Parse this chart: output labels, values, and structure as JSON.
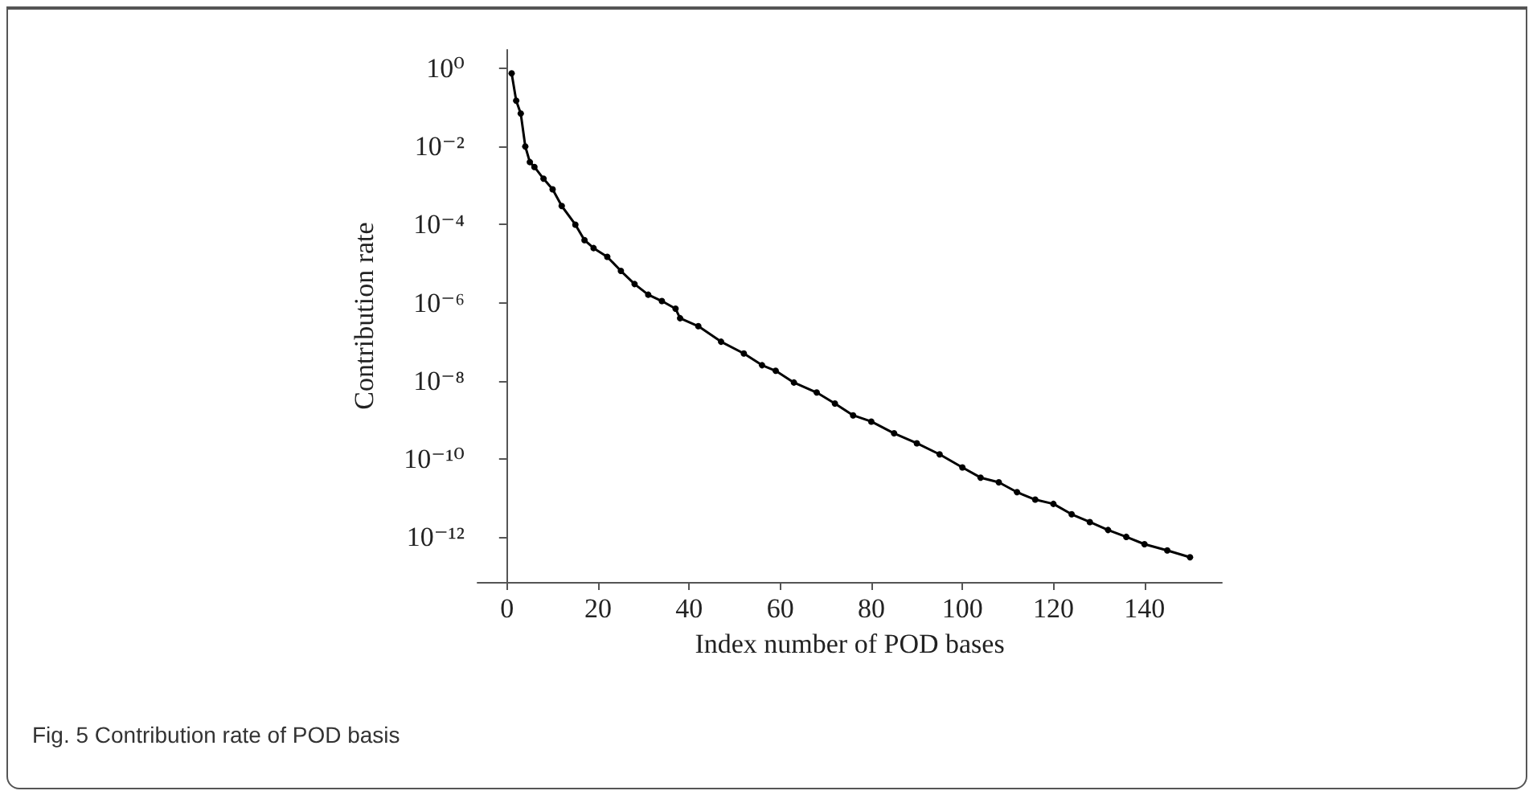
{
  "chart_data": {
    "type": "line",
    "xlabel": "Index number of POD bases",
    "ylabel": "Contribution rate",
    "annotations": [
      "Fig. 5 Contribution rate of POD basis"
    ],
    "x": [
      1,
      2,
      3,
      4,
      5,
      6,
      8,
      10,
      12,
      15,
      17,
      19,
      22,
      25,
      28,
      31,
      34,
      37,
      38,
      42,
      47,
      52,
      56,
      59,
      63,
      68,
      72,
      76,
      80,
      85,
      90,
      95,
      100,
      104,
      108,
      112,
      116,
      120,
      124,
      128,
      132,
      136,
      140,
      145,
      150
    ],
    "series": [
      {
        "color": "#000000",
        "values": [
          0.75,
          0.15,
          0.07,
          0.01,
          0.004,
          0.003,
          0.0015,
          0.0008,
          0.0003,
          0.0001,
          4e-05,
          2.5e-05,
          1.5e-05,
          6.5e-06,
          3e-06,
          1.6e-06,
          1.1e-06,
          7e-07,
          4e-07,
          2.5e-07,
          1e-07,
          5e-08,
          2.5e-08,
          1.8e-08,
          9e-09,
          5e-09,
          2.6e-09,
          1.3e-09,
          9e-10,
          4.5e-10,
          2.5e-10,
          1.3e-10,
          6e-11,
          3.3e-11,
          2.5e-11,
          1.4e-11,
          9e-12,
          7e-12,
          3.8e-12,
          2.4e-12,
          1.5e-12,
          1e-12,
          6.5e-13,
          4.5e-13,
          3e-13
        ]
      }
    ],
    "xlim": [
      -6.5,
      157
    ],
    "xticks": [
      0,
      20,
      40,
      60,
      80,
      100,
      120,
      140
    ],
    "ylim": [
      7e-14,
      3
    ],
    "yticks": [
      {
        "value": 1,
        "label": "10⁰"
      },
      {
        "value": 0.01,
        "label": "10⁻²"
      },
      {
        "value": 0.0001,
        "label": "10⁻⁴"
      },
      {
        "value": 1e-06,
        "label": "10⁻⁶"
      },
      {
        "value": 1e-08,
        "label": "10⁻⁸"
      },
      {
        "value": 1e-10,
        "label": "10⁻¹⁰"
      },
      {
        "value": 1e-12,
        "label": "10⁻¹²"
      }
    ],
    "log": "y",
    "grid": false,
    "marker": "circle",
    "line_style": "solid"
  }
}
